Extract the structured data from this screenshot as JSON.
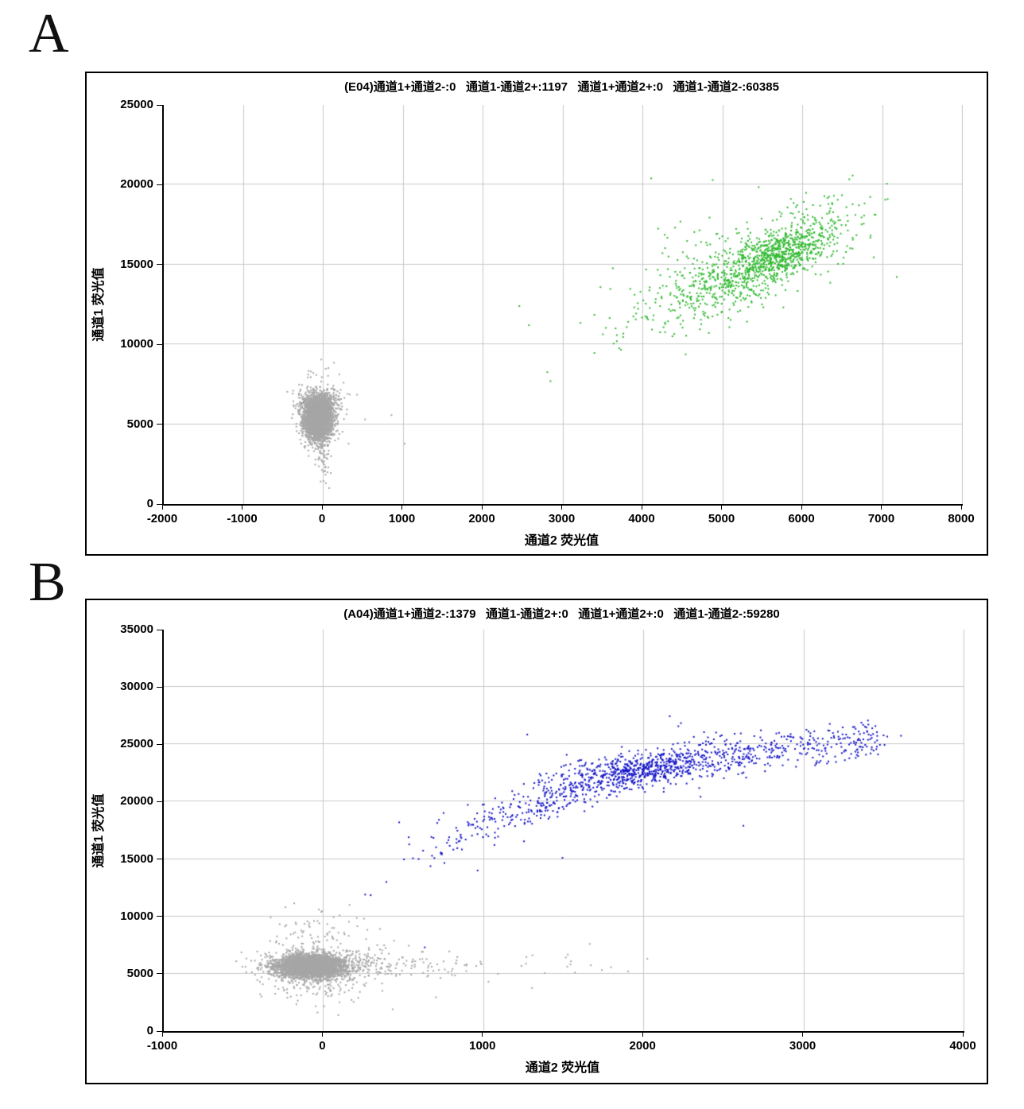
{
  "page": {
    "background": "#ffffff"
  },
  "panels": [
    {
      "letter": "A",
      "chart": {
        "type": "scatter",
        "title": "(E04)通道1+通道2-:0   通道1-通道2+:1197   通道1+通道2+:0   通道1-通道2-:60385",
        "xlabel": "通道2 荧光值",
        "ylabel": "通道1 荧光值",
        "xlim": [
          -2000,
          8000
        ],
        "ylim": [
          0,
          25000
        ],
        "x_ticks": [
          -2000,
          -1000,
          0,
          1000,
          2000,
          3000,
          4000,
          5000,
          6000,
          7000,
          8000
        ],
        "y_ticks": [
          0,
          5000,
          10000,
          15000,
          20000,
          25000
        ],
        "grid": true,
        "colors": {
          "axis": "#000000",
          "grid": "#c9c9c9"
        },
        "series": [
          {
            "name": "double-negative-droplets",
            "reported_label": "通道1-通道2-",
            "reported_count": 60385,
            "color": "#a6a6a6",
            "clusters": [
              {
                "kind": "gauss",
                "count": 3000,
                "center": [
                  -70,
                  5300
                ],
                "sd": [
                  85,
                  620
                ],
                "corr": 0
              },
              {
                "kind": "gauss",
                "count": 600,
                "center": [
                  -55,
                  6250
                ],
                "sd": [
                  125,
                  420
                ],
                "corr": 0
              },
              {
                "kind": "gauss",
                "count": 160,
                "center": [
                  -60,
                  5500
                ],
                "sd": [
                  150,
                  1150
                ],
                "corr": 0
              },
              {
                "kind": "gauss",
                "count": 45,
                "center": [
                  5,
                  3050
                ],
                "sd": [
                  55,
                  850
                ],
                "corr": 0,
                "clip": [
                  -250,
                  250,
                  800,
                  4500
                ]
              }
            ],
            "outliers": [
              [
                850,
                5570
              ],
              [
                1015,
                3780
              ],
              [
                520,
                5300
              ],
              [
                420,
                6850
              ],
              [
                250,
                7600
              ],
              [
                130,
                8850
              ],
              [
                -30,
                9050
              ],
              [
                -160,
                8300
              ],
              [
                60,
                8520
              ],
              [
                300,
                6900
              ],
              [
                -380,
                7100
              ],
              [
                90,
                1940
              ],
              [
                70,
                1000
              ],
              [
                0,
                1440
              ],
              [
                20,
                2300
              ],
              [
                -20,
                2690
              ]
            ]
          },
          {
            "name": "channel1-positive-droplets",
            "reported_label": "通道1-通道2+",
            "reported_count": 1197,
            "color": "#2db82d",
            "clusters": [
              {
                "kind": "gauss",
                "count": 900,
                "center": [
                  5400,
                  14900
                ],
                "sd": [
                  600,
                  1750
                ],
                "corr": 0.78,
                "clip": [
                  3500,
                  7200,
                  9000,
                  20600
                ]
              },
              {
                "kind": "gauss",
                "count": 300,
                "center": [
                  5730,
                  15650
                ],
                "sd": [
                  290,
                  750
                ],
                "corr": 0.5
              },
              {
                "kind": "gauss",
                "count": 130,
                "center": [
                  5200,
                  15600
                ],
                "sd": [
                  850,
                  2200
                ],
                "corr": 0.55,
                "clip": [
                  3400,
                  7200,
                  10000,
                  20600
                ]
              }
            ],
            "outliers": [
              [
                2450,
                12400
              ],
              [
                2570,
                11200
              ],
              [
                3215,
                11350
              ],
              [
                3390,
                11850
              ],
              [
                3390,
                9460
              ],
              [
                2800,
                8260
              ],
              [
                2840,
                7700
              ],
              [
                3580,
                11650
              ],
              [
                3655,
                11000
              ],
              [
                3630,
                10050
              ],
              [
                3670,
                10200
              ],
              [
                3700,
                9760
              ],
              [
                7060,
                19100
              ],
              [
                6620,
                16000
              ],
              [
                4100,
                20400
              ],
              [
                4870,
                20300
              ]
            ]
          }
        ]
      }
    },
    {
      "letter": "B",
      "chart": {
        "type": "scatter",
        "title": "(A04)通道1+通道2-:1379   通道1-通道2+:0   通道1+通道2+:0   通道1-通道2-:59280",
        "xlabel": "通道2 荧光值",
        "ylabel": "通道1 荧光值",
        "xlim": [
          -1000,
          4000
        ],
        "ylim": [
          0,
          35000
        ],
        "x_ticks": [
          -1000,
          0,
          1000,
          2000,
          3000,
          4000
        ],
        "y_ticks": [
          0,
          5000,
          10000,
          15000,
          20000,
          25000,
          30000,
          35000
        ],
        "grid": true,
        "colors": {
          "axis": "#000000",
          "grid": "#c9c9c9"
        },
        "series": [
          {
            "name": "double-negative-droplets",
            "reported_label": "通道1-通道2-",
            "reported_count": 59280,
            "color": "#a6a6a6",
            "clusters": [
              {
                "kind": "gauss",
                "count": 3600,
                "center": [
                  -75,
                  5650
                ],
                "sd": [
                  105,
                  500
                ],
                "corr": 0
              },
              {
                "kind": "gauss",
                "count": 300,
                "center": [
                  -60,
                  5750
                ],
                "sd": [
                  200,
                  1000
                ],
                "corr": 0
              },
              {
                "kind": "htail",
                "count": 150,
                "x0": 170,
                "lambda": 430,
                "xmax": 2050,
                "y": 5850,
                "ysd": 600
              },
              {
                "kind": "gauss",
                "count": 70,
                "center": [
                  -70,
                  8300
                ],
                "sd": [
                  140,
                  1100
                ],
                "corr": 0,
                "clip": [
                  -450,
                  400,
                  6800,
                  11200
                ]
              },
              {
                "kind": "gauss",
                "count": 80,
                "center": [
                  -10,
                  3900
                ],
                "sd": [
                  170,
                  850
                ],
                "corr": 0,
                "clip": [
                  -500,
                  600,
                  1500,
                  4800
                ]
              }
            ],
            "outliers": [
              [
                90,
                1400
              ],
              [
                430,
                1900
              ],
              [
                700,
                2950
              ],
              [
                -240,
                10800
              ],
              [
                160,
                11000
              ],
              [
                530,
                7450
              ],
              [
                1660,
                7600
              ],
              [
                1300,
                3750
              ],
              [
                1900,
                5200
              ],
              [
                2020,
                6300
              ],
              [
                -490,
                5600
              ],
              [
                -430,
                4900
              ],
              [
                250,
                9800
              ],
              [
                350,
                8900
              ]
            ]
          },
          {
            "name": "channel2-positive-droplets",
            "reported_label": "通道1+通道2-",
            "reported_count": 1379,
            "color": "#1414c8",
            "clusters": [
              {
                "kind": "arc",
                "count": 1050,
                "anchors": [
                  [
                    380,
                    13300
                  ],
                  [
                    700,
                    16300
                  ],
                  [
                    1100,
                    18600
                  ],
                  [
                    1500,
                    20800
                  ],
                  [
                    1900,
                    22500
                  ],
                  [
                    2300,
                    23600
                  ],
                  [
                    2800,
                    24500
                  ],
                  [
                    3400,
                    25400
                  ]
                ],
                "peak": 0.62,
                "spread": 0.55,
                "xsd": 70,
                "ysd": 850
              },
              {
                "kind": "gauss",
                "count": 260,
                "center": [
                  1950,
                  22800
                ],
                "sd": [
                  260,
                  700
                ],
                "corr": 0.3
              }
            ],
            "outliers": [
              [
                258,
                11900
              ],
              [
                292,
                11850
              ],
              [
                630,
                7300
              ],
              [
                2160,
                27450
              ],
              [
                2230,
                26850
              ],
              [
                1270,
                25850
              ],
              [
                3340,
                26120
              ],
              [
                3430,
                25900
              ],
              [
                530,
                16900
              ],
              [
                470,
                18200
              ],
              [
                390,
                13000
              ],
              [
                2620,
                17900
              ],
              [
                1490,
                15100
              ],
              [
                960,
                14000
              ]
            ]
          }
        ]
      }
    }
  ]
}
